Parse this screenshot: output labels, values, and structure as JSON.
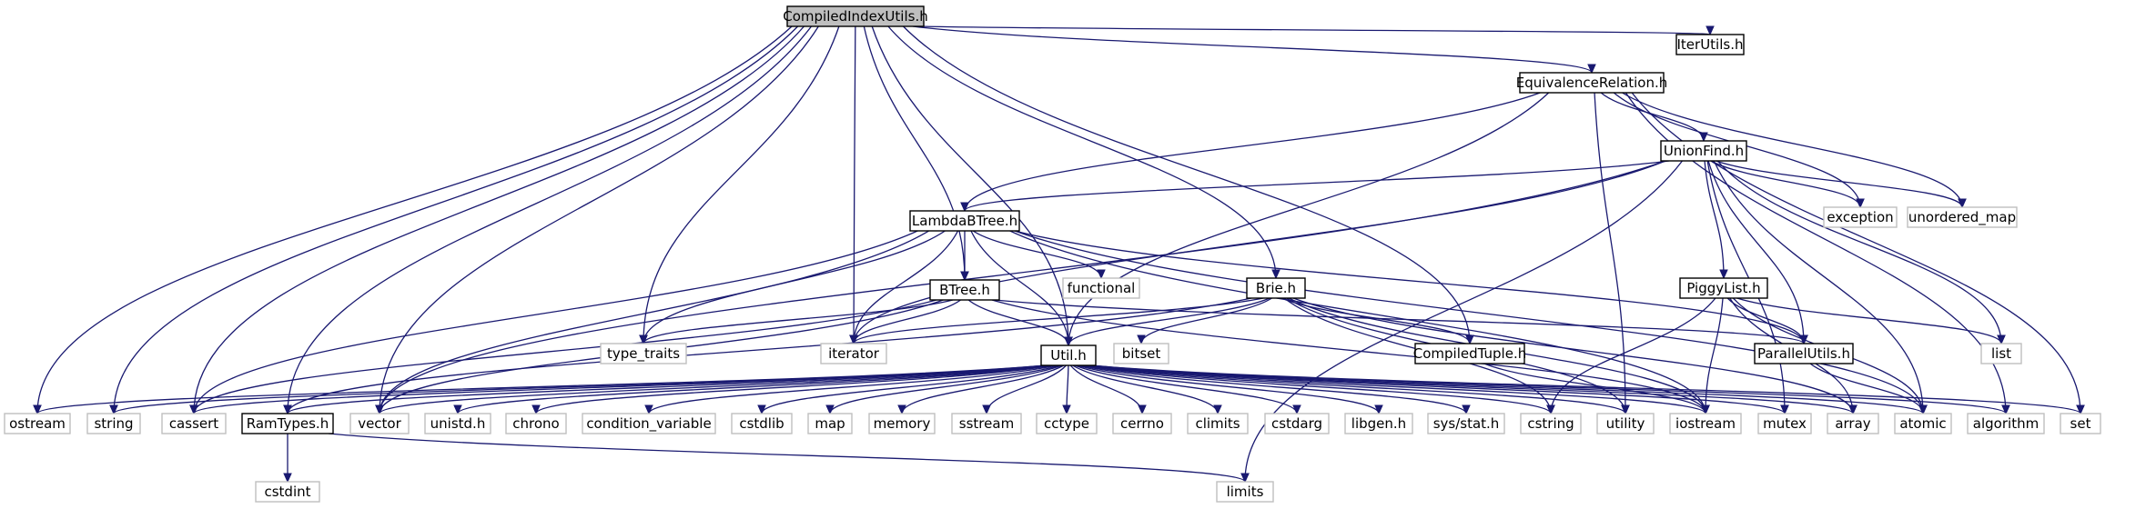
{
  "colors": {
    "edge": "#191970",
    "root_fill": "#bfbfbf",
    "primary_border": "#000000",
    "external_border": "#bfbfbf",
    "background": "#ffffff"
  },
  "nodes": {
    "compiled_index_utils": "CompiledIndexUtils.h",
    "equivalence_relation": "EquivalenceRelation.h",
    "iter_utils": "IterUtils.h",
    "union_find": "UnionFind.h",
    "lambda_btree": "LambdaBTree.h",
    "btree": "BTree.h",
    "brie": "Brie.h",
    "piggy_list": "PiggyList.h",
    "compiled_tuple": "CompiledTuple.h",
    "parallel_utils": "ParallelUtils.h",
    "util": "Util.h",
    "ram_types": "RamTypes.h",
    "exception": "exception",
    "unordered_map": "unordered_map",
    "functional": "functional",
    "type_traits": "type_traits",
    "iterator": "iterator",
    "bitset": "bitset",
    "list": "list",
    "ostream": "ostream",
    "string": "string",
    "cassert": "cassert",
    "vector": "vector",
    "unistd_h": "unistd.h",
    "chrono": "chrono",
    "condition_variable": "condition_variable",
    "cstdlib": "cstdlib",
    "map": "map",
    "memory": "memory",
    "sstream": "sstream",
    "cctype": "cctype",
    "cerrno": "cerrno",
    "climits": "climits",
    "cstdarg": "cstdarg",
    "libgen_h": "libgen.h",
    "sys_stat_h": "sys/stat.h",
    "cstring": "cstring",
    "utility": "utility",
    "iostream": "iostream",
    "mutex": "mutex",
    "array": "array",
    "atomic": "atomic",
    "algorithm": "algorithm",
    "set": "set",
    "cstdint": "cstdint",
    "limits": "limits"
  },
  "edges": [
    [
      "compiled_index_utils",
      "equivalence_relation"
    ],
    [
      "compiled_index_utils",
      "iter_utils"
    ],
    [
      "compiled_index_utils",
      "ostream"
    ],
    [
      "compiled_index_utils",
      "string"
    ],
    [
      "compiled_index_utils",
      "cassert"
    ],
    [
      "compiled_index_utils",
      "ram_types"
    ],
    [
      "compiled_index_utils",
      "vector"
    ],
    [
      "compiled_index_utils",
      "type_traits"
    ],
    [
      "compiled_index_utils",
      "iterator"
    ],
    [
      "compiled_index_utils",
      "btree"
    ],
    [
      "compiled_index_utils",
      "util"
    ],
    [
      "compiled_index_utils",
      "brie"
    ],
    [
      "compiled_index_utils",
      "compiled_tuple"
    ],
    [
      "equivalence_relation",
      "lambda_btree"
    ],
    [
      "equivalence_relation",
      "union_find"
    ],
    [
      "equivalence_relation",
      "util"
    ],
    [
      "equivalence_relation",
      "exception"
    ],
    [
      "equivalence_relation",
      "unordered_map"
    ],
    [
      "equivalence_relation",
      "algorithm"
    ],
    [
      "equivalence_relation",
      "set"
    ],
    [
      "equivalence_relation",
      "utility"
    ],
    [
      "union_find",
      "lambda_btree"
    ],
    [
      "union_find",
      "piggy_list"
    ],
    [
      "union_find",
      "exception"
    ],
    [
      "union_find",
      "unordered_map"
    ],
    [
      "union_find",
      "list"
    ],
    [
      "union_find",
      "atomic"
    ],
    [
      "union_find",
      "parallel_utils"
    ],
    [
      "union_find",
      "iterator"
    ],
    [
      "union_find",
      "vector"
    ],
    [
      "union_find",
      "mutex"
    ],
    [
      "union_find",
      "limits"
    ],
    [
      "lambda_btree",
      "btree"
    ],
    [
      "lambda_btree",
      "util"
    ],
    [
      "lambda_btree",
      "functional"
    ],
    [
      "lambda_btree",
      "type_traits"
    ],
    [
      "lambda_btree",
      "iterator"
    ],
    [
      "lambda_btree",
      "cassert"
    ],
    [
      "lambda_btree",
      "vector"
    ],
    [
      "lambda_btree",
      "parallel_utils"
    ],
    [
      "lambda_btree",
      "iostream"
    ],
    [
      "lambda_btree",
      "atomic"
    ],
    [
      "btree",
      "util"
    ],
    [
      "btree",
      "iterator"
    ],
    [
      "btree",
      "type_traits"
    ],
    [
      "btree",
      "cassert"
    ],
    [
      "btree",
      "vector"
    ],
    [
      "btree",
      "parallel_utils"
    ],
    [
      "btree",
      "iostream"
    ],
    [
      "brie",
      "util"
    ],
    [
      "brie",
      "compiled_tuple"
    ],
    [
      "brie",
      "iterator"
    ],
    [
      "brie",
      "bitset"
    ],
    [
      "brie",
      "ram_types"
    ],
    [
      "brie",
      "cstring"
    ],
    [
      "brie",
      "utility"
    ],
    [
      "brie",
      "iostream"
    ],
    [
      "brie",
      "array"
    ],
    [
      "piggy_list",
      "parallel_utils"
    ],
    [
      "piggy_list",
      "list"
    ],
    [
      "piggy_list",
      "atomic"
    ],
    [
      "piggy_list",
      "iostream"
    ],
    [
      "piggy_list",
      "array"
    ],
    [
      "piggy_list",
      "cstring"
    ],
    [
      "compiled_tuple",
      "iostream"
    ],
    [
      "parallel_utils",
      "atomic"
    ],
    [
      "util",
      "ostream"
    ],
    [
      "util",
      "string"
    ],
    [
      "util",
      "cassert"
    ],
    [
      "util",
      "ram_types"
    ],
    [
      "util",
      "vector"
    ],
    [
      "util",
      "unistd_h"
    ],
    [
      "util",
      "chrono"
    ],
    [
      "util",
      "condition_variable"
    ],
    [
      "util",
      "cstdlib"
    ],
    [
      "util",
      "map"
    ],
    [
      "util",
      "memory"
    ],
    [
      "util",
      "sstream"
    ],
    [
      "util",
      "cctype"
    ],
    [
      "util",
      "cerrno"
    ],
    [
      "util",
      "climits"
    ],
    [
      "util",
      "cstdarg"
    ],
    [
      "util",
      "libgen_h"
    ],
    [
      "util",
      "sys_stat_h"
    ],
    [
      "util",
      "cstring"
    ],
    [
      "util",
      "utility"
    ],
    [
      "util",
      "iostream"
    ],
    [
      "util",
      "mutex"
    ],
    [
      "util",
      "array"
    ],
    [
      "util",
      "atomic"
    ],
    [
      "util",
      "algorithm"
    ],
    [
      "util",
      "set"
    ],
    [
      "ram_types",
      "cstdint"
    ],
    [
      "ram_types",
      "limits"
    ]
  ]
}
